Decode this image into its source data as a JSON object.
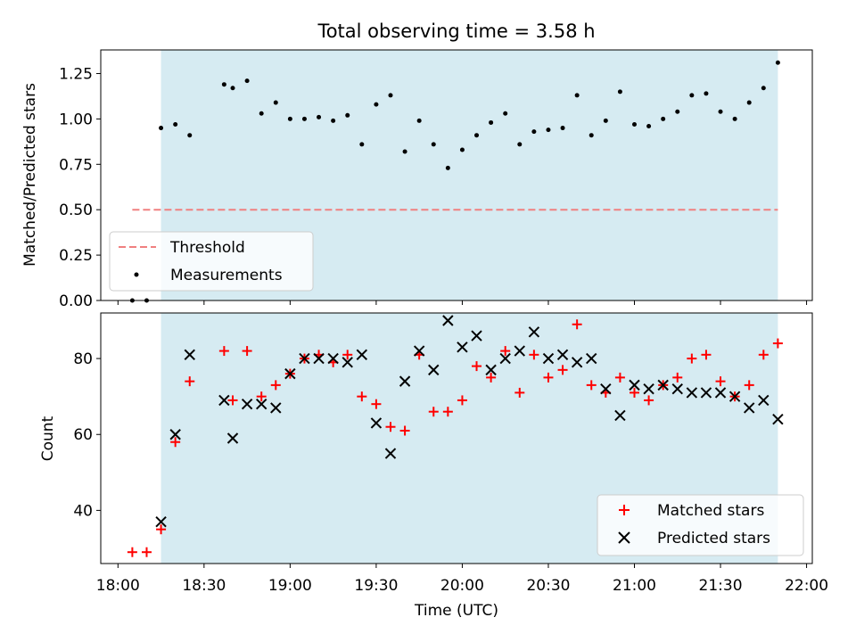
{
  "chart_data": [
    {
      "type": "scatter",
      "title": "Total observing time = 3.58 h",
      "xlabel": "",
      "ylabel": "Matched/Predicted stars",
      "xlim": [
        "18:00",
        "22:00"
      ],
      "ylim": [
        0,
        1.38
      ],
      "y_ticks": [
        "0.00",
        "0.25",
        "0.50",
        "0.75",
        "1.00",
        "1.25"
      ],
      "y_tick_values": [
        0,
        0.25,
        0.5,
        0.75,
        1.0,
        1.25
      ],
      "shaded_interval": [
        "18:15",
        "21:50"
      ],
      "shade_color": "#add8e6",
      "threshold": {
        "label": "Threshold",
        "value": 0.5,
        "x_range": [
          "18:05",
          "21:50"
        ],
        "color": "#f08080"
      },
      "series": [
        {
          "name": "Measurements",
          "color": "#000000",
          "marker": "dot",
          "x": [
            "18:05",
            "18:10",
            "18:15",
            "18:20",
            "18:25",
            "18:37",
            "18:40",
            "18:45",
            "18:50",
            "18:55",
            "19:00",
            "19:05",
            "19:10",
            "19:15",
            "19:20",
            "19:25",
            "19:30",
            "19:35",
            "19:40",
            "19:45",
            "19:50",
            "19:55",
            "20:00",
            "20:05",
            "20:10",
            "20:15",
            "20:20",
            "20:25",
            "20:30",
            "20:35",
            "20:40",
            "20:45",
            "20:50",
            "20:55",
            "21:00",
            "21:05",
            "21:10",
            "21:15",
            "21:20",
            "21:25",
            "21:30",
            "21:35",
            "21:40",
            "21:45",
            "21:50"
          ],
          "y": [
            0.0,
            0.0,
            0.95,
            0.97,
            0.91,
            1.19,
            1.17,
            1.21,
            1.03,
            1.09,
            1.0,
            1.0,
            1.01,
            0.99,
            1.02,
            0.86,
            1.08,
            1.13,
            0.82,
            0.99,
            0.86,
            0.73,
            0.83,
            0.91,
            0.98,
            1.03,
            0.86,
            0.93,
            0.94,
            0.95,
            1.13,
            0.91,
            0.99,
            1.15,
            0.97,
            0.96,
            1.0,
            1.04,
            1.13,
            1.14,
            1.04,
            1.0,
            1.09,
            1.17,
            1.31
          ]
        }
      ]
    },
    {
      "type": "scatter",
      "title": "",
      "xlabel": "Time (UTC)",
      "ylabel": "Count",
      "xlim": [
        "18:00",
        "22:00"
      ],
      "ylim": [
        26,
        92
      ],
      "x_ticks": [
        "18:00",
        "18:30",
        "19:00",
        "19:30",
        "20:00",
        "20:30",
        "21:00",
        "21:30",
        "22:00"
      ],
      "y_ticks": [
        "40",
        "60",
        "80"
      ],
      "y_tick_values": [
        40,
        60,
        80
      ],
      "shaded_interval": [
        "18:15",
        "21:50"
      ],
      "shade_color": "#add8e6",
      "series": [
        {
          "name": "Matched stars",
          "color": "#ff0000",
          "marker": "plus",
          "x": [
            "18:05",
            "18:10",
            "18:15",
            "18:20",
            "18:25",
            "18:37",
            "18:40",
            "18:45",
            "18:50",
            "18:55",
            "19:00",
            "19:05",
            "19:10",
            "19:15",
            "19:20",
            "19:25",
            "19:30",
            "19:35",
            "19:40",
            "19:45",
            "19:50",
            "19:55",
            "20:00",
            "20:05",
            "20:10",
            "20:15",
            "20:20",
            "20:25",
            "20:30",
            "20:35",
            "20:40",
            "20:45",
            "20:50",
            "20:55",
            "21:00",
            "21:05",
            "21:10",
            "21:15",
            "21:20",
            "21:25",
            "21:30",
            "21:35",
            "21:40",
            "21:45",
            "21:50"
          ],
          "y": [
            29,
            29,
            35,
            58,
            74,
            82,
            69,
            82,
            70,
            73,
            76,
            80,
            81,
            79,
            81,
            70,
            68,
            62,
            61,
            81,
            66,
            66,
            69,
            78,
            75,
            82,
            71,
            81,
            75,
            77,
            89,
            73,
            71,
            75,
            71,
            69,
            73,
            75,
            80,
            81,
            74,
            70,
            73,
            81,
            84
          ]
        },
        {
          "name": "Predicted stars",
          "color": "#000000",
          "marker": "x",
          "x": [
            "18:15",
            "18:20",
            "18:25",
            "18:37",
            "18:40",
            "18:45",
            "18:50",
            "18:55",
            "19:00",
            "19:05",
            "19:10",
            "19:15",
            "19:20",
            "19:25",
            "19:30",
            "19:35",
            "19:40",
            "19:45",
            "19:50",
            "19:55",
            "20:00",
            "20:05",
            "20:10",
            "20:15",
            "20:20",
            "20:25",
            "20:30",
            "20:35",
            "20:40",
            "20:45",
            "20:50",
            "20:55",
            "21:00",
            "21:05",
            "21:10",
            "21:15",
            "21:20",
            "21:25",
            "21:30",
            "21:35",
            "21:40",
            "21:45",
            "21:50"
          ],
          "y": [
            37,
            60,
            81,
            69,
            59,
            68,
            68,
            67,
            76,
            80,
            80,
            80,
            79,
            81,
            63,
            55,
            74,
            82,
            77,
            90,
            83,
            86,
            77,
            80,
            82,
            87,
            80,
            81,
            79,
            80,
            72,
            65,
            73,
            72,
            73,
            72,
            71,
            71,
            71,
            70,
            67,
            69,
            64
          ]
        }
      ]
    }
  ]
}
